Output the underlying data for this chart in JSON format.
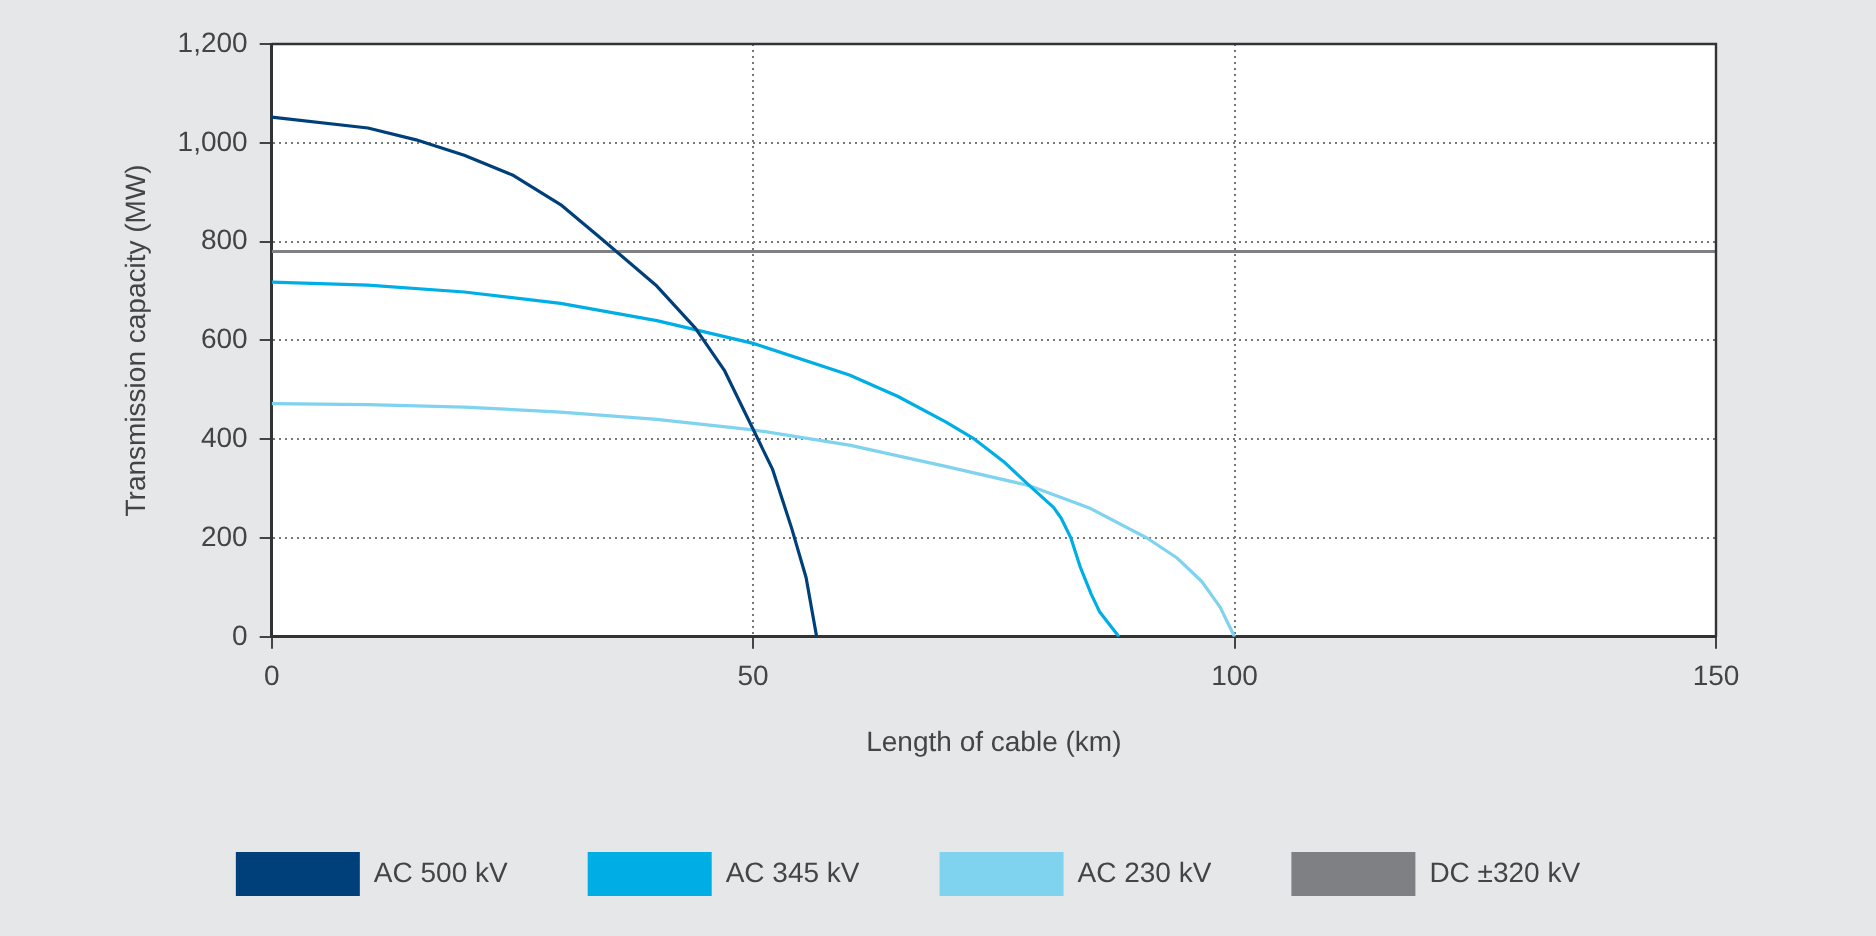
{
  "chart_data": {
    "type": "line",
    "xlabel": "Length of cable (km)",
    "ylabel": "Transmission capacity (MW)",
    "xlim": [
      0,
      150
    ],
    "xticks": [
      0,
      50,
      100,
      150
    ],
    "ylim": [
      0,
      1200
    ],
    "yticks": [
      0,
      200,
      400,
      600,
      800,
      {
        "value": 1000,
        "label": "1,000"
      },
      {
        "value": 1200,
        "label": "1,200"
      }
    ],
    "grid": true,
    "legend": "bottom",
    "marker": "none",
    "line_style": "solid",
    "series": [
      {
        "name": "AC 500 kV",
        "color": "#00407a",
        "x": [
          0,
          10,
          15,
          20,
          25,
          30,
          34,
          40,
          44,
          47,
          50,
          52,
          54,
          55.5,
          56.6
        ],
        "values": [
          1052,
          1030,
          1006,
          975,
          935,
          875,
          810,
          710,
          625,
          540,
          420,
          340,
          220,
          120,
          0
        ]
      },
      {
        "name": "AC 345 kV",
        "color": "#00aee6",
        "x": [
          0,
          10,
          20,
          30,
          40,
          50,
          60,
          65,
          70,
          73,
          76,
          78.7,
          81.2,
          82,
          83,
          84,
          85.1,
          86,
          88
        ],
        "values": [
          718,
          712,
          698,
          675,
          640,
          594,
          530,
          487,
          435,
          400,
          355,
          306,
          262,
          240,
          200,
          140,
          87,
          50,
          0
        ]
      },
      {
        "name": "AC 230 kV",
        "color": "#7fd3ef",
        "x": [
          0,
          10,
          20,
          30,
          40,
          50,
          60,
          70,
          78.7,
          85,
          90.9,
          94,
          96.6,
          98.5,
          100
        ],
        "values": [
          472,
          470,
          465,
          455,
          440,
          419,
          388,
          345,
          306,
          260,
          200,
          160,
          112,
          60,
          0
        ]
      },
      {
        "name": "DC ±320 kV",
        "color": "#7f8083",
        "x": [
          0,
          150
        ],
        "values": [
          780,
          780
        ]
      }
    ]
  }
}
